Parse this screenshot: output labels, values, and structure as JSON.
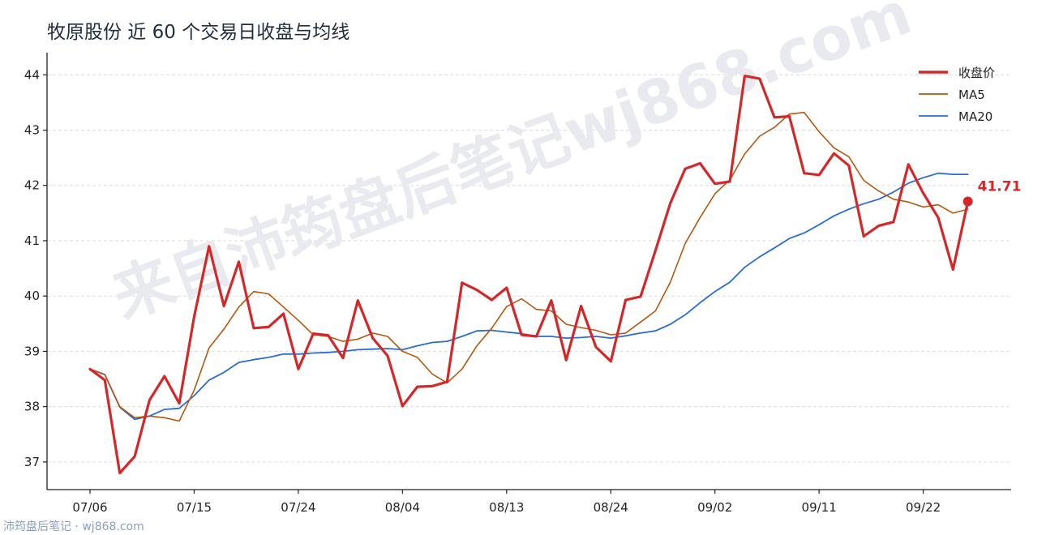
{
  "chart_data": {
    "type": "line",
    "title": "牧原股份 近 60 个交易日收盘与均线",
    "x_tick_labels": [
      "07/06",
      "07/15",
      "07/24",
      "08/04",
      "08/13",
      "08/24",
      "09/02",
      "09/11",
      "09/22"
    ],
    "y_ticks": [
      37,
      38,
      39,
      40,
      41,
      42,
      43,
      44
    ],
    "ylim": [
      36.5,
      44.4
    ],
    "grid": "horizontal dashed",
    "legend_position": "top-right",
    "series": [
      {
        "name": "收盘价",
        "color": "#d62728",
        "values": [
          38.68,
          38.48,
          36.8,
          37.1,
          38.12,
          38.55,
          38.06,
          39.63,
          40.9,
          39.82,
          40.62,
          39.42,
          39.44,
          39.68,
          38.68,
          39.32,
          39.29,
          38.88,
          39.92,
          39.24,
          38.92,
          38.01,
          38.36,
          38.37,
          38.45,
          40.24,
          40.11,
          39.93,
          40.15,
          39.3,
          39.27,
          39.92,
          38.84,
          39.82,
          39.08,
          38.82,
          39.93,
          39.99,
          40.82,
          41.68,
          42.3,
          42.4,
          42.03,
          42.07,
          43.98,
          43.93,
          43.23,
          43.25,
          42.22,
          42.19,
          42.58,
          42.36,
          41.08,
          41.27,
          41.34,
          42.38,
          41.86,
          41.42,
          40.48,
          41.71
        ]
      },
      {
        "name": "MA5",
        "color": "#b5580f",
        "values": [
          38.68,
          38.58,
          38.0,
          37.8,
          37.83,
          37.8,
          37.74,
          38.3,
          39.06,
          39.4,
          39.8,
          40.08,
          40.04,
          39.8,
          39.56,
          39.3,
          39.27,
          39.18,
          39.22,
          39.33,
          39.27,
          39.0,
          38.89,
          38.59,
          38.43,
          38.68,
          39.1,
          39.42,
          39.81,
          39.95,
          39.76,
          39.73,
          39.49,
          39.43,
          39.38,
          39.3,
          39.33,
          39.53,
          39.73,
          40.25,
          40.95,
          41.42,
          41.85,
          42.1,
          42.57,
          42.89,
          43.05,
          43.29,
          43.32,
          42.97,
          42.68,
          42.52,
          42.09,
          41.9,
          41.75,
          41.7,
          41.61,
          41.65,
          41.5,
          41.57
        ]
      },
      {
        "name": "MA20",
        "color": "#2b6bd6",
        "values": [
          38.68,
          38.58,
          37.99,
          37.77,
          37.83,
          37.95,
          37.97,
          38.2,
          38.48,
          38.62,
          38.8,
          38.85,
          38.89,
          38.95,
          38.95,
          38.97,
          38.98,
          39.0,
          39.03,
          39.04,
          39.05,
          39.03,
          39.1,
          39.16,
          39.18,
          39.27,
          39.37,
          39.38,
          39.35,
          39.32,
          39.27,
          39.27,
          39.24,
          39.25,
          39.27,
          39.24,
          39.28,
          39.33,
          39.37,
          39.49,
          39.66,
          39.88,
          40.08,
          40.25,
          40.52,
          40.71,
          40.87,
          41.04,
          41.14,
          41.29,
          41.45,
          41.57,
          41.67,
          41.75,
          41.88,
          42.04,
          42.14,
          42.22,
          42.2,
          42.2
        ]
      }
    ],
    "annotations": [
      {
        "text": "41.71",
        "series": "收盘价",
        "index": 59
      }
    ]
  },
  "watermark": {
    "text": "来自沛筠盘后笔记wj868.com"
  },
  "footer": {
    "text": "沛筠盘后笔记 · wj868.com"
  }
}
